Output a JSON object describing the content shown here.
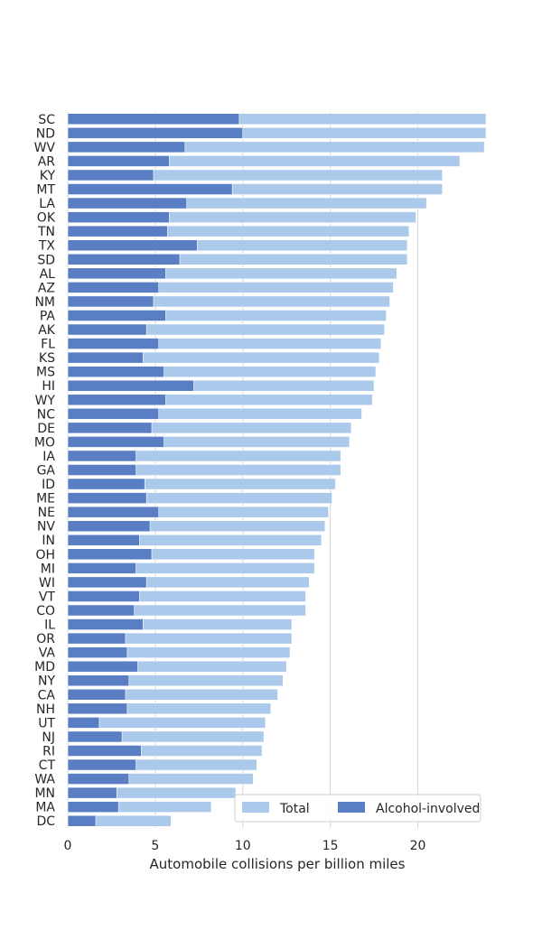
{
  "chart_data": {
    "type": "bar",
    "orientation": "horizontal",
    "categories": [
      "SC",
      "ND",
      "WV",
      "AR",
      "KY",
      "MT",
      "LA",
      "OK",
      "TN",
      "TX",
      "SD",
      "AL",
      "AZ",
      "NM",
      "PA",
      "AK",
      "FL",
      "KS",
      "MS",
      "HI",
      "WY",
      "NC",
      "DE",
      "MO",
      "IA",
      "GA",
      "ID",
      "ME",
      "NE",
      "NV",
      "IN",
      "OH",
      "MI",
      "WI",
      "VT",
      "CO",
      "IL",
      "OR",
      "VA",
      "MD",
      "NY",
      "CA",
      "NH",
      "UT",
      "NJ",
      "RI",
      "CT",
      "WA",
      "MN",
      "MA",
      "DC"
    ],
    "series": [
      {
        "name": "Total",
        "color": "#abc9ea",
        "values": [
          23.9,
          23.9,
          23.8,
          22.4,
          21.4,
          21.4,
          20.5,
          19.9,
          19.5,
          19.4,
          19.4,
          18.8,
          18.6,
          18.4,
          18.2,
          18.1,
          17.9,
          17.8,
          17.6,
          17.5,
          17.4,
          16.8,
          16.2,
          16.1,
          15.6,
          15.6,
          15.3,
          15.1,
          14.9,
          14.7,
          14.5,
          14.1,
          14.1,
          13.8,
          13.6,
          13.6,
          12.8,
          12.8,
          12.7,
          12.5,
          12.3,
          12.0,
          11.6,
          11.3,
          11.2,
          11.1,
          10.8,
          10.6,
          9.6,
          8.2,
          5.9
        ]
      },
      {
        "name": "Alcohol-involved",
        "color": "#5a7ec4",
        "values": [
          9.8,
          10.0,
          6.7,
          5.8,
          4.9,
          9.4,
          6.8,
          5.8,
          5.7,
          7.4,
          6.4,
          5.6,
          5.2,
          4.9,
          5.6,
          4.5,
          5.2,
          4.3,
          5.5,
          7.2,
          5.6,
          5.2,
          4.8,
          5.5,
          3.9,
          3.9,
          4.4,
          4.5,
          5.2,
          4.7,
          4.1,
          4.8,
          3.9,
          4.5,
          4.1,
          3.8,
          4.3,
          3.3,
          3.4,
          4.0,
          3.5,
          3.3,
          3.4,
          1.8,
          3.1,
          4.2,
          3.9,
          3.5,
          2.8,
          2.9,
          1.6
        ]
      }
    ],
    "xlabel": "Automobile collisions per billion miles",
    "ylabel": "",
    "xlim": [
      0,
      24
    ],
    "xticks": [
      0,
      5,
      10,
      15,
      20
    ],
    "grid": "vertical",
    "legend": {
      "position": "bottom-right",
      "entries": [
        "Total",
        "Alcohol-involved"
      ]
    }
  }
}
